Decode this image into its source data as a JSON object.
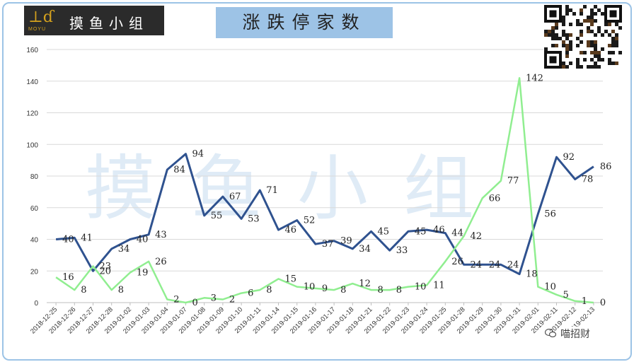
{
  "header": {
    "title": "涨跌停家数",
    "logo_text": "摸鱼小组",
    "logo_sub": "MOYU"
  },
  "watermark_text": "摸鱼小组",
  "credit": "喵招财",
  "icons": {
    "logo": "fish-logo-icon",
    "qr": "qr-code-icon",
    "credit": "wechat-icon"
  },
  "colors": {
    "series_up": "#2f528f",
    "series_down": "#90ee90",
    "title_bg": "#9dc3e6",
    "frame": "#9cc3e6"
  },
  "chart_data": {
    "type": "line",
    "title": "涨跌停家数",
    "ylim": [
      0,
      160
    ],
    "yticks": [
      0,
      20,
      40,
      60,
      80,
      100,
      120,
      140,
      160
    ],
    "grid": true,
    "categories": [
      "2018-12-25",
      "2018-12-26",
      "2018-12-27",
      "2018-12-28",
      "2019-01-02",
      "2019-01-03",
      "2019-01-04",
      "2019-01-07",
      "2019-01-08",
      "2019-01-09",
      "2019-01-10",
      "2019-01-11",
      "2019-01-14",
      "2019-01-15",
      "2019-01-16",
      "2019-01-17",
      "2019-01-18",
      "2019-01-21",
      "2019-01-22",
      "2019-01-23",
      "2019-01-24",
      "2019-01-25",
      "2019-01-28",
      "2019-01-29",
      "2019-01-30",
      "2019-01-31",
      "2019-02-01",
      "2019-02-11",
      "2019-02-12",
      "2019-02-13"
    ],
    "series": [
      {
        "values": [
          40,
          41,
          20,
          34,
          40,
          43,
          84,
          94,
          55,
          67,
          53,
          71,
          46,
          52,
          37,
          39,
          34,
          45,
          33,
          45,
          46,
          44,
          24,
          24,
          24,
          18,
          56,
          92,
          78,
          86
        ],
        "color": "#2f528f"
      },
      {
        "values": [
          16,
          8,
          23,
          8,
          19,
          26,
          2,
          0,
          3,
          2,
          6,
          8,
          15,
          10,
          9,
          8,
          12,
          8,
          8,
          10,
          11,
          26,
          42,
          66,
          77,
          142,
          10,
          5,
          1,
          0
        ],
        "color": "#90ee90"
      }
    ]
  }
}
